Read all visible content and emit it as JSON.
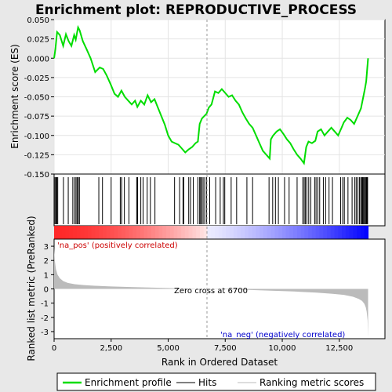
{
  "chart_data": {
    "type": "line",
    "title": "Enrichment plot: REPRODUCTIVE_PROCESS",
    "es_panel": {
      "ylabel": "Enrichment score (ES)",
      "ylim": [
        -0.15,
        0.05
      ],
      "yticks": [
        "0.050",
        "0.025",
        "0.000",
        "-0.025",
        "-0.050",
        "-0.075",
        "-0.100",
        "-0.125",
        "-0.150"
      ],
      "ytick_values": [
        0.05,
        0.025,
        0.0,
        -0.025,
        -0.05,
        -0.075,
        -0.1,
        -0.125,
        -0.15
      ],
      "xlim": [
        0,
        14500
      ],
      "grid": true,
      "series": [
        {
          "name": "Enrichment profile",
          "color": "#00dd00",
          "x": [
            0,
            60,
            130,
            250,
            400,
            520,
            640,
            760,
            880,
            950,
            1050,
            1120,
            1260,
            1420,
            1600,
            1800,
            2000,
            2150,
            2300,
            2480,
            2650,
            2800,
            2950,
            3100,
            3250,
            3400,
            3550,
            3650,
            3800,
            3950,
            4100,
            4250,
            4400,
            4550,
            4700,
            4850,
            5000,
            5150,
            5300,
            5450,
            5600,
            5750,
            5900,
            6050,
            6200,
            6300,
            6380,
            6480,
            6580,
            6680,
            6780,
            6900,
            7050,
            7200,
            7350,
            7500,
            7650,
            7800,
            7950,
            8100,
            8250,
            8400,
            8550,
            8700,
            8850,
            9000,
            9150,
            9300,
            9450,
            9500,
            9600,
            9750,
            9900,
            10050,
            10200,
            10350,
            10500,
            10650,
            10800,
            10950,
            11050,
            11150,
            11300,
            11450,
            11550,
            11700,
            11850,
            12000,
            12150,
            12300,
            12450,
            12600,
            12700,
            12850,
            13000,
            13150,
            13300,
            13450,
            13550,
            13620,
            13680,
            13720,
            13760
          ],
          "y": [
            0.0,
            0.012,
            0.034,
            0.03,
            0.016,
            0.031,
            0.022,
            0.016,
            0.03,
            0.024,
            0.04,
            0.036,
            0.022,
            0.012,
            0.0,
            -0.018,
            -0.012,
            -0.014,
            -0.022,
            -0.034,
            -0.046,
            -0.05,
            -0.042,
            -0.05,
            -0.055,
            -0.06,
            -0.055,
            -0.063,
            -0.055,
            -0.06,
            -0.048,
            -0.057,
            -0.053,
            -0.064,
            -0.075,
            -0.086,
            -0.1,
            -0.108,
            -0.11,
            -0.112,
            -0.117,
            -0.122,
            -0.118,
            -0.115,
            -0.11,
            -0.108,
            -0.085,
            -0.078,
            -0.075,
            -0.072,
            -0.064,
            -0.06,
            -0.043,
            -0.045,
            -0.04,
            -0.045,
            -0.05,
            -0.048,
            -0.055,
            -0.06,
            -0.07,
            -0.078,
            -0.085,
            -0.09,
            -0.1,
            -0.11,
            -0.12,
            -0.125,
            -0.13,
            -0.105,
            -0.1,
            -0.095,
            -0.092,
            -0.098,
            -0.105,
            -0.11,
            -0.118,
            -0.125,
            -0.13,
            -0.136,
            -0.115,
            -0.108,
            -0.11,
            -0.107,
            -0.095,
            -0.092,
            -0.1,
            -0.095,
            -0.09,
            -0.095,
            -0.1,
            -0.09,
            -0.083,
            -0.077,
            -0.08,
            -0.085,
            -0.075,
            -0.065,
            -0.05,
            -0.04,
            -0.03,
            -0.015,
            0.0
          ]
        }
      ]
    },
    "hits": {
      "name": "Hits",
      "positions": [
        40,
        80,
        120,
        160,
        410,
        620,
        820,
        900,
        960,
        1010,
        1060,
        1110,
        1960,
        2120,
        2500,
        2900,
        2960,
        3080,
        3280,
        3620,
        3660,
        3800,
        3900,
        4080,
        4220,
        4420,
        5280,
        5500,
        5650,
        5680,
        5900,
        5980,
        6100,
        6300,
        6380,
        6420,
        6470,
        6530,
        6600,
        6680,
        6820,
        7080,
        7280,
        7420,
        7480,
        7760,
        8000,
        8450,
        8700,
        9420,
        9580,
        9700,
        9830,
        10100,
        10300,
        10650,
        10900,
        10960,
        11010,
        11080,
        11160,
        11250,
        11420,
        11480,
        11560,
        11640,
        11800,
        11900,
        12050,
        12200,
        12560,
        12650,
        12720,
        12880,
        13060,
        13180,
        13240,
        13310,
        13380,
        13440,
        13480,
        13520,
        13560,
        13600,
        13640,
        13680,
        13710,
        13740
      ]
    },
    "metric_panel": {
      "ylabel": "Ranked list metric (PreRanked)",
      "xlabel": "Rank in Ordered Dataset",
      "ylim": [
        -3.5,
        3.5
      ],
      "yticks": [
        "3",
        "2",
        "1",
        "0",
        "-1",
        "-2",
        "-3"
      ],
      "ytick_values": [
        3,
        2,
        1,
        0,
        -1,
        -2,
        -3
      ],
      "xticks": [
        "0",
        "2,500",
        "5,000",
        "7,500",
        "10,000",
        "12,500"
      ],
      "xtick_values": [
        0,
        2500,
        5000,
        7500,
        10000,
        12500
      ],
      "series": [
        {
          "name": "Ranking metric scores",
          "color": "#bbbbbb",
          "x": [
            0,
            30,
            80,
            150,
            250,
            400,
            600,
            900,
            1300,
            1800,
            2500,
            3500,
            4500,
            5500,
            6200,
            6700,
            7500,
            8500,
            9500,
            10500,
            11500,
            12200,
            12700,
            13100,
            13350,
            13500,
            13600,
            13660,
            13700,
            13740,
            13760
          ],
          "y": [
            2.9,
            2.0,
            1.4,
            1.0,
            0.75,
            0.55,
            0.42,
            0.33,
            0.27,
            0.22,
            0.17,
            0.12,
            0.08,
            0.04,
            0.01,
            0.0,
            -0.03,
            -0.07,
            -0.12,
            -0.18,
            -0.26,
            -0.34,
            -0.42,
            -0.55,
            -0.7,
            -0.85,
            -1.05,
            -1.3,
            -1.6,
            -2.2,
            -3.4
          ]
        }
      ],
      "zero_cross_label": "Zero cross at 6700",
      "zero_cross": 6700,
      "pos_label": "'na_pos' (positively correlated)",
      "neg_label": "'na_neg' (negatively correlated)"
    },
    "total_ranks": 13760,
    "legend": {
      "placement": "bottom",
      "items": [
        {
          "label": "Enrichment profile",
          "color": "#00dd00"
        },
        {
          "label": "Hits",
          "color": "#000000"
        },
        {
          "label": "Ranking metric scores",
          "color": "#bbbbbb"
        }
      ]
    }
  }
}
